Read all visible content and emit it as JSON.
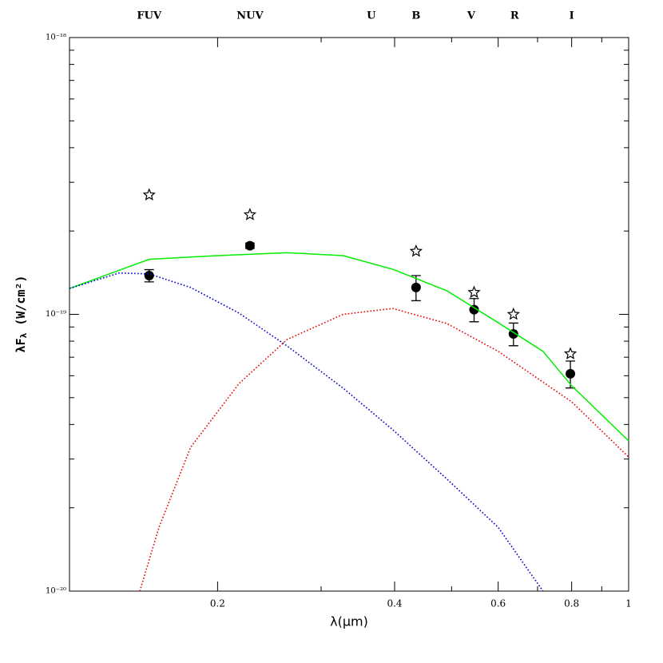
{
  "chart_data": {
    "type": "sed",
    "x_label": "λ(μm)",
    "y_label_parts": [
      "λF",
      "λ",
      " (W/cm²)"
    ],
    "log_x": true,
    "log_y": true,
    "xlim": [
      0.112,
      1
    ],
    "ylim": [
      1e-20,
      1e-18
    ],
    "xticks": [
      0.2,
      0.4,
      0.6,
      0.8,
      1
    ],
    "xminor": [
      0.3,
      0.5,
      0.7,
      0.9
    ],
    "yticks": [
      {
        "value": 1e-20,
        "label": "10⁻²⁰"
      },
      {
        "value": 1e-19,
        "label": "10⁻¹⁹"
      },
      {
        "value": 1e-18,
        "label": "10⁻¹⁸"
      }
    ],
    "yminor": [
      2e-20,
      3e-20,
      4e-20,
      5e-20,
      6e-20,
      7e-20,
      8e-20,
      9e-20,
      2e-19,
      3e-19,
      4e-19,
      5e-19,
      6e-19,
      7e-19,
      8e-19,
      9e-19
    ],
    "bands": [
      {
        "label": "FUV",
        "x": 0.153
      },
      {
        "label": "NUV",
        "x": 0.227
      },
      {
        "label": "U",
        "x": 0.365
      },
      {
        "label": "B",
        "x": 0.435
      },
      {
        "label": "V",
        "x": 0.54
      },
      {
        "label": "R",
        "x": 0.64
      },
      {
        "label": "I",
        "x": 0.8
      }
    ],
    "series": [
      {
        "marker": "circle",
        "color": "#000000",
        "x": [
          0.153,
          0.227,
          0.435,
          0.546,
          0.637,
          0.796
        ],
        "values": [
          1.38e-19,
          1.77e-19,
          1.25e-19,
          1.04e-19,
          8.5e-20,
          6.1e-20
        ],
        "errors": [
          7e-21,
          4e-21,
          1.3e-20,
          1e-20,
          8e-21,
          6.8e-21
        ]
      },
      {
        "marker": "star",
        "color": "#000000",
        "x": [
          0.153,
          0.227,
          0.435,
          0.546,
          0.637,
          0.796
        ],
        "values": [
          2.7e-19,
          2.29e-19,
          1.69e-19,
          1.2e-19,
          1e-19,
          7.2e-20
        ]
      },
      {
        "line": "solid",
        "color": "#00ee00",
        "x": [
          0.112,
          0.153,
          0.2,
          0.2625,
          0.327,
          0.397,
          0.491,
          0.6,
          0.715,
          0.8,
          1
        ],
        "values": [
          1.24e-19,
          1.58e-19,
          1.63e-19,
          1.67e-19,
          1.63e-19,
          1.455e-19,
          1.216e-19,
          9.33e-20,
          7.35e-20,
          5.52e-20,
          3.49e-20
        ]
      },
      {
        "line": "dotted",
        "color": "#0000cc",
        "x": [
          0.112,
          0.136,
          0.153,
          0.18,
          0.2175,
          0.2625,
          0.327,
          0.397,
          0.491,
          0.6,
          0.715
        ],
        "values": [
          1.24e-19,
          1.41e-19,
          1.4e-19,
          1.25e-19,
          1.01e-19,
          7.69e-20,
          5.41e-20,
          3.83e-20,
          2.54e-20,
          1.7e-20,
          1e-20
        ]
      },
      {
        "line": "dotted",
        "color": "#ee0000",
        "x": [
          0.1475,
          0.159,
          0.18,
          0.2175,
          0.2625,
          0.327,
          0.397,
          0.491,
          0.6,
          0.8,
          1
        ],
        "values": [
          1e-20,
          1.7e-20,
          3.31e-20,
          5.62e-20,
          8.11e-20,
          1e-19,
          1.05e-19,
          9.26e-20,
          7.35e-20,
          4.83e-20,
          3.05e-20
        ]
      }
    ]
  }
}
